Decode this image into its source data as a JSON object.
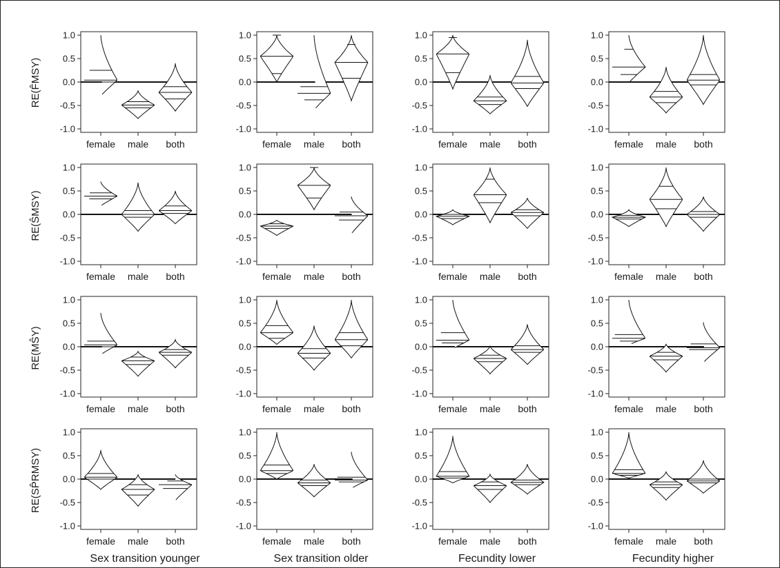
{
  "chart_data": {
    "type": "violin",
    "yticks": [
      "1.0",
      "0.5",
      "0.0",
      "-0.5",
      "-1.0"
    ],
    "ylim": [
      -1.0,
      1.0
    ],
    "categories": [
      "female",
      "male",
      "both"
    ],
    "rows": [
      {
        "label": "RE(F̂MSY)"
      },
      {
        "label": "RE(ŜMSY)"
      },
      {
        "label": "RE(MŜY)"
      },
      {
        "label": "RE(SP̂RMSY)"
      }
    ],
    "columns": [
      {
        "label": "Sex transition younger"
      },
      {
        "label": "Sex transition older"
      },
      {
        "label": "Fecundity lower"
      },
      {
        "label": "Fecundity higher"
      }
    ],
    "panels": [
      [
        [
          {
            "min": -0.3,
            "max": 1.05,
            "q": [
              0.0,
              0.04,
              0.25
            ]
          },
          {
            "min": -0.78,
            "max": -0.18,
            "q": [
              -0.55,
              -0.49,
              -0.42
            ]
          },
          {
            "min": -0.62,
            "max": 0.4,
            "q": [
              -0.36,
              -0.22,
              -0.1
            ]
          }
        ],
        [
          {
            "min": 0.0,
            "max": 1.05,
            "q": [
              0.18,
              0.55,
              1.05
            ]
          },
          {
            "min": -0.6,
            "max": 1.0,
            "q": [
              -0.38,
              -0.24,
              -0.1
            ]
          },
          {
            "min": -0.4,
            "max": 1.05,
            "q": [
              0.08,
              0.42,
              0.8
            ]
          }
        ],
        [
          {
            "min": -0.15,
            "max": 1.05,
            "q": [
              0.2,
              0.6,
              0.95
            ]
          },
          {
            "min": -0.68,
            "max": 0.15,
            "q": [
              -0.48,
              -0.4,
              -0.32
            ]
          },
          {
            "min": -0.52,
            "max": 0.9,
            "q": [
              -0.14,
              -0.02,
              0.12
            ]
          }
        ],
        [
          {
            "min": -0.02,
            "max": 1.05,
            "q": [
              0.16,
              0.32,
              0.7
            ]
          },
          {
            "min": -0.66,
            "max": 0.32,
            "q": [
              -0.44,
              -0.32,
              -0.2
            ]
          },
          {
            "min": -0.48,
            "max": 1.05,
            "q": [
              -0.06,
              0.04,
              0.16
            ]
          }
        ]
      ],
      [
        [
          {
            "min": 0.18,
            "max": 0.7,
            "q": [
              0.33,
              0.39,
              0.46
            ]
          },
          {
            "min": -0.36,
            "max": 0.68,
            "q": [
              -0.06,
              0.0,
              0.08
            ]
          },
          {
            "min": -0.2,
            "max": 0.5,
            "q": [
              0.02,
              0.08,
              0.18
            ]
          }
        ],
        [
          {
            "min": -0.45,
            "max": -0.12,
            "q": [
              -0.3,
              -0.25,
              -0.2
            ]
          },
          {
            "min": 0.1,
            "max": 1.05,
            "q": [
              0.35,
              0.62,
              1.05
            ]
          },
          {
            "min": -0.42,
            "max": 0.38,
            "q": [
              -0.12,
              -0.03,
              0.05
            ]
          }
        ],
        [
          {
            "min": -0.22,
            "max": 0.1,
            "q": [
              -0.09,
              -0.04,
              0.0
            ]
          },
          {
            "min": -0.18,
            "max": 1.05,
            "q": [
              0.25,
              0.42,
              0.75
            ]
          },
          {
            "min": -0.3,
            "max": 0.35,
            "q": [
              -0.03,
              0.04,
              0.1
            ]
          }
        ],
        [
          {
            "min": -0.26,
            "max": 0.1,
            "q": [
              -0.1,
              -0.06,
              -0.02
            ]
          },
          {
            "min": -0.26,
            "max": 1.05,
            "q": [
              0.12,
              0.32,
              0.6
            ]
          },
          {
            "min": -0.36,
            "max": 0.38,
            "q": [
              -0.06,
              0.0,
              0.06
            ]
          }
        ]
      ],
      [
        [
          {
            "min": -0.17,
            "max": 0.72,
            "q": [
              0.0,
              0.04,
              0.12
            ]
          },
          {
            "min": -0.63,
            "max": -0.1,
            "q": [
              -0.38,
              -0.3,
              -0.22
            ]
          },
          {
            "min": -0.45,
            "max": 0.15,
            "q": [
              -0.18,
              -0.12,
              -0.06
            ]
          }
        ],
        [
          {
            "min": 0.05,
            "max": 1.05,
            "q": [
              0.18,
              0.3,
              0.45
            ]
          },
          {
            "min": -0.5,
            "max": 0.45,
            "q": [
              -0.24,
              -0.14,
              -0.04
            ]
          },
          {
            "min": -0.24,
            "max": 1.05,
            "q": [
              0.02,
              0.15,
              0.3
            ]
          }
        ],
        [
          {
            "min": -0.05,
            "max": 1.05,
            "q": [
              0.08,
              0.14,
              0.3
            ]
          },
          {
            "min": -0.58,
            "max": 0.02,
            "q": [
              -0.32,
              -0.25,
              -0.18
            ]
          },
          {
            "min": -0.38,
            "max": 0.48,
            "q": [
              -0.12,
              -0.06,
              0.02
            ]
          }
        ],
        [
          {
            "min": 0.04,
            "max": 1.05,
            "q": [
              0.12,
              0.18,
              0.26
            ]
          },
          {
            "min": -0.54,
            "max": 0.06,
            "q": [
              -0.28,
              -0.2,
              -0.12
            ]
          },
          {
            "min": -0.34,
            "max": 0.52,
            "q": [
              -0.06,
              -0.02,
              0.06
            ]
          }
        ]
      ],
      [
        [
          {
            "min": -0.22,
            "max": 0.62,
            "q": [
              0.0,
              0.04,
              0.12
            ]
          },
          {
            "min": -0.58,
            "max": 0.1,
            "q": [
              -0.34,
              -0.22,
              -0.12
            ]
          },
          {
            "min": -0.46,
            "max": 0.1,
            "q": [
              -0.2,
              -0.12,
              -0.04
            ]
          }
        ],
        [
          {
            "min": 0.0,
            "max": 1.05,
            "q": [
              0.12,
              0.18,
              0.3
            ]
          },
          {
            "min": -0.38,
            "max": 0.32,
            "q": [
              -0.14,
              -0.08,
              -0.02
            ]
          },
          {
            "min": -0.2,
            "max": 0.58,
            "q": [
              -0.06,
              -0.02,
              0.04
            ]
          }
        ],
        [
          {
            "min": -0.08,
            "max": 0.92,
            "q": [
              0.02,
              0.06,
              0.16
            ]
          },
          {
            "min": -0.5,
            "max": 0.1,
            "q": [
              -0.22,
              -0.14,
              -0.06
            ]
          },
          {
            "min": -0.32,
            "max": 0.32,
            "q": [
              -0.12,
              -0.07,
              -0.02
            ]
          }
        ],
        [
          {
            "min": 0.02,
            "max": 1.02,
            "q": [
              0.08,
              0.12,
              0.2
            ]
          },
          {
            "min": -0.45,
            "max": 0.16,
            "q": [
              -0.18,
              -0.12,
              -0.06
            ]
          },
          {
            "min": -0.3,
            "max": 0.4,
            "q": [
              -0.08,
              -0.04,
              0.0
            ]
          }
        ]
      ]
    ]
  }
}
